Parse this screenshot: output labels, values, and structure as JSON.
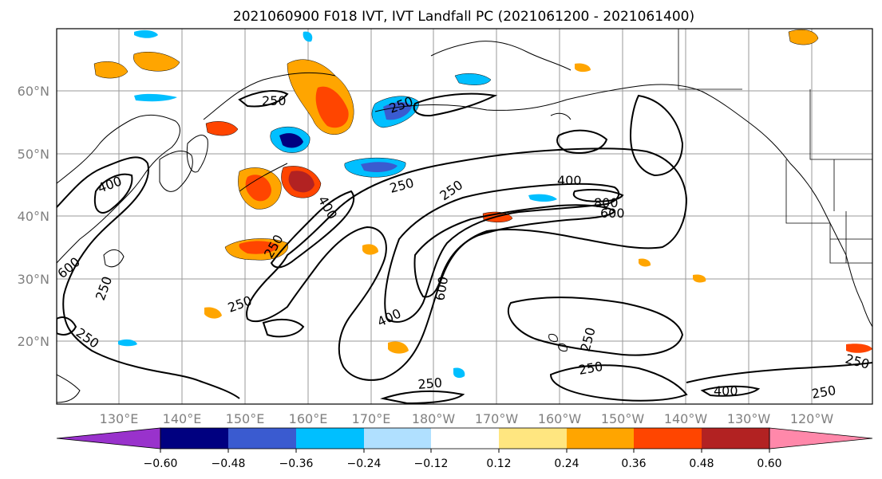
{
  "title": "2021060900 F018 IVT, IVT Landfall PC (2021061200 - 2021061400)",
  "lon_ticks": [
    "130°E",
    "140°E",
    "150°E",
    "160°E",
    "170°E",
    "180°W",
    "170°W",
    "160°W",
    "150°W",
    "140°W",
    "130°W",
    "120°W"
  ],
  "lat_ticks": [
    "60°N",
    "50°N",
    "40°N",
    "30°N",
    "20°N"
  ],
  "colorbar": {
    "labels": [
      "−0.60",
      "−0.48",
      "−0.36",
      "−0.24",
      "−0.12",
      "0.12",
      "0.24",
      "0.36",
      "0.48",
      "0.60"
    ],
    "colors": [
      "#9932cc",
      "#000080",
      "#3a5bd0",
      "#00bfff",
      "#b0e0ff",
      "#ffffff",
      "#ffe680",
      "#ffa500",
      "#ff4500",
      "#b22222",
      "#ff88aa"
    ]
  },
  "contour_labels": [
    "250",
    "400",
    "600",
    "800"
  ],
  "map_labels": {
    "a1": "250",
    "a2": "250",
    "a3": "400",
    "a4": "400",
    "a5": "250",
    "a6": "250",
    "a7": "400",
    "a8": "800",
    "a9": "600",
    "a10": "250",
    "a11": "600",
    "a12": "400",
    "a13": "250",
    "a14": "250",
    "a15": "250",
    "a16": "250",
    "a17": "400",
    "a18": "250",
    "a19": "250",
    "a20": "600",
    "a21": "250",
    "a22": "250"
  }
}
